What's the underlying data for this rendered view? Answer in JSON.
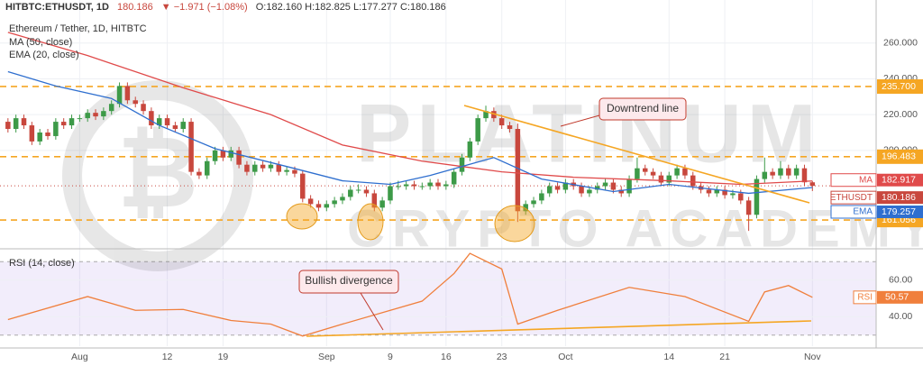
{
  "chart_data": {
    "type": "candlestick",
    "header": {
      "symbol": "HITBTC:ETHUSDT, 1D",
      "last": "180.186",
      "change": "▼ −1.971 (−1.08%)",
      "ohlc": "O:182.160 H:182.825 L:177.277 C:180.186"
    },
    "title": "Ethereum / Tether, 1D, HITBTC",
    "watermark": [
      "PLATINUM",
      "CRYPTO ACADEMY"
    ],
    "xlim": [
      -10,
      100
    ],
    "xticks": [
      {
        "value": 0,
        "label": "Aug"
      },
      {
        "value": 11,
        "label": "12"
      },
      {
        "value": 18,
        "label": "19"
      },
      {
        "value": 31,
        "label": "Sep"
      },
      {
        "value": 39,
        "label": "9"
      },
      {
        "value": 46,
        "label": "16"
      },
      {
        "value": 53,
        "label": "23"
      },
      {
        "value": 61,
        "label": "Oct"
      },
      {
        "value": 74,
        "label": "14"
      },
      {
        "value": 81,
        "label": "21"
      },
      {
        "value": 92,
        "label": "Nov"
      }
    ],
    "ylim": [
      147,
      275
    ],
    "yticks": [
      {
        "value": 200,
        "label": "200.000"
      },
      {
        "value": 220,
        "label": "220.000"
      },
      {
        "value": 240,
        "label": "240.000"
      },
      {
        "value": 260,
        "label": "260.000"
      }
    ],
    "grid": true,
    "candles": {
      "up_color": "#3d9a48",
      "down_color": "#c8473d",
      "x": [
        -9,
        -8,
        -7,
        -6,
        -5,
        -4,
        -3,
        -2,
        -1,
        0,
        1,
        2,
        3,
        4,
        5,
        6,
        7,
        8,
        9,
        10,
        11,
        12,
        13,
        14,
        15,
        16,
        17,
        18,
        19,
        20,
        21,
        22,
        23,
        24,
        25,
        26,
        27,
        28,
        29,
        30,
        31,
        32,
        33,
        34,
        35,
        36,
        37,
        38,
        39,
        40,
        41,
        42,
        43,
        44,
        45,
        46,
        47,
        48,
        49,
        50,
        51,
        52,
        53,
        54,
        55,
        56,
        57,
        58,
        59,
        60,
        61,
        62,
        63,
        64,
        65,
        66,
        67,
        68,
        69,
        70,
        71,
        72,
        73,
        74,
        75,
        76,
        77,
        78,
        79,
        80,
        81,
        82,
        83,
        84,
        85,
        86,
        87,
        88,
        89,
        90,
        91,
        92
      ],
      "ohlc": [
        [
          216,
          218,
          210,
          212
        ],
        [
          212,
          220,
          210,
          218
        ],
        [
          218,
          220,
          212,
          214
        ],
        [
          214,
          216,
          203,
          205
        ],
        [
          205,
          212,
          203,
          210
        ],
        [
          210,
          212,
          206,
          208
        ],
        [
          208,
          218,
          206,
          216
        ],
        [
          216,
          218,
          212,
          214
        ],
        [
          214,
          220,
          212,
          218
        ],
        [
          218,
          220,
          216,
          218
        ],
        [
          218,
          223,
          216,
          221
        ],
        [
          221,
          223,
          217,
          219
        ],
        [
          219,
          224,
          217,
          222
        ],
        [
          222,
          228,
          220,
          226
        ],
        [
          226,
          238,
          224,
          236
        ],
        [
          236,
          238,
          226,
          228
        ],
        [
          228,
          230,
          224,
          226
        ],
        [
          226,
          228,
          220,
          222
        ],
        [
          222,
          224,
          212,
          214
        ],
        [
          214,
          220,
          212,
          218
        ],
        [
          218,
          220,
          212,
          214
        ],
        [
          214,
          216,
          210,
          212
        ],
        [
          212,
          218,
          210,
          216
        ],
        [
          216,
          218,
          186,
          188
        ],
        [
          188,
          190,
          184,
          186
        ],
        [
          186,
          196,
          184,
          194
        ],
        [
          194,
          202,
          192,
          200
        ],
        [
          200,
          202,
          194,
          196
        ],
        [
          196,
          202,
          194,
          200
        ],
        [
          200,
          202,
          190,
          192
        ],
        [
          192,
          194,
          186,
          188
        ],
        [
          188,
          194,
          186,
          192
        ],
        [
          192,
          194,
          188,
          190
        ],
        [
          190,
          194,
          188,
          192
        ],
        [
          192,
          194,
          186,
          188
        ],
        [
          188,
          191,
          186,
          189
        ],
        [
          189,
          191,
          185,
          187
        ],
        [
          187,
          189,
          171,
          173
        ],
        [
          173,
          175,
          168,
          170
        ],
        [
          170,
          172,
          166,
          168
        ],
        [
          168,
          172,
          166,
          170
        ],
        [
          170,
          174,
          168,
          172
        ],
        [
          172,
          176,
          170,
          174
        ],
        [
          174,
          180,
          172,
          178
        ],
        [
          178,
          181,
          176,
          178
        ],
        [
          178,
          180,
          174,
          176
        ],
        [
          176,
          178,
          166,
          168
        ],
        [
          168,
          174,
          166,
          172
        ],
        [
          172,
          182,
          170,
          180
        ],
        [
          180,
          183,
          178,
          180
        ],
        [
          180,
          183,
          178,
          181
        ],
        [
          181,
          183,
          178,
          180
        ],
        [
          180,
          182,
          178,
          180
        ],
        [
          180,
          184,
          178,
          182
        ],
        [
          182,
          184,
          178,
          180
        ],
        [
          180,
          183,
          178,
          181
        ],
        [
          181,
          190,
          179,
          188
        ],
        [
          188,
          198,
          186,
          196
        ],
        [
          196,
          207,
          194,
          205
        ],
        [
          205,
          220,
          203,
          218
        ],
        [
          218,
          225,
          216,
          222
        ],
        [
          222,
          224,
          216,
          218
        ],
        [
          218,
          220,
          212,
          214
        ],
        [
          214,
          216,
          210,
          212
        ],
        [
          212,
          215,
          160,
          166
        ],
        [
          166,
          172,
          164,
          170
        ],
        [
          170,
          174,
          168,
          172
        ],
        [
          172,
          178,
          170,
          176
        ],
        [
          176,
          182,
          174,
          180
        ],
        [
          180,
          182,
          176,
          178
        ],
        [
          178,
          184,
          176,
          182
        ],
        [
          182,
          184,
          178,
          180
        ],
        [
          180,
          182,
          174,
          176
        ],
        [
          176,
          180,
          174,
          178
        ],
        [
          178,
          182,
          176,
          180
        ],
        [
          180,
          184,
          178,
          182
        ],
        [
          182,
          184,
          176,
          178
        ],
        [
          178,
          180,
          174,
          176
        ],
        [
          176,
          186,
          174,
          184
        ],
        [
          184,
          196,
          182,
          190
        ],
        [
          190,
          192,
          186,
          188
        ],
        [
          188,
          190,
          184,
          186
        ],
        [
          186,
          188,
          180,
          182
        ],
        [
          182,
          188,
          180,
          186
        ],
        [
          186,
          192,
          184,
          190
        ],
        [
          190,
          192,
          184,
          186
        ],
        [
          186,
          188,
          178,
          180
        ],
        [
          180,
          182,
          176,
          178
        ],
        [
          178,
          180,
          174,
          176
        ],
        [
          176,
          180,
          174,
          178
        ],
        [
          178,
          180,
          173,
          175
        ],
        [
          175,
          178,
          173,
          176
        ],
        [
          176,
          178,
          170,
          172
        ],
        [
          172,
          174,
          155,
          164
        ],
        [
          164,
          186,
          162,
          184
        ],
        [
          184,
          196,
          182,
          188
        ],
        [
          188,
          190,
          184,
          186
        ],
        [
          186,
          194,
          184,
          190
        ],
        [
          190,
          192,
          184,
          186
        ],
        [
          186,
          192,
          184,
          190
        ],
        [
          190,
          192,
          180,
          182.16
        ],
        [
          182.16,
          182.825,
          177.277,
          180.186
        ]
      ]
    },
    "series": [
      {
        "name": "MA",
        "label": "MA (50, close)",
        "color": "#e04a4a",
        "x": [
          -9,
          1,
          13,
          24,
          33,
          43,
          53,
          62,
          74,
          83,
          92
        ],
        "values": [
          266,
          253,
          235,
          220,
          203,
          194,
          188,
          185,
          183,
          181,
          182.917
        ]
      },
      {
        "name": "EMA",
        "label": "EMA (20, close)",
        "color": "#2f6fcf",
        "x": [
          -9,
          -3,
          4,
          10,
          17,
          26,
          33,
          39,
          44,
          52,
          58,
          67,
          74,
          84,
          92
        ],
        "values": [
          244,
          236,
          229,
          214,
          201,
          191,
          183,
          181,
          186,
          196,
          184,
          177,
          181,
          176,
          179.257
        ]
      }
    ],
    "levels": {
      "color": "#f5a623",
      "items": [
        {
          "value": 235.7,
          "label": "235.700"
        },
        {
          "value": 196.483,
          "label": "196.483"
        },
        {
          "value": 161.056,
          "label": "161.056"
        }
      ]
    },
    "price_labels": [
      {
        "name": "MA",
        "value": 182.917,
        "label": "182.917",
        "color": "#e04a4a"
      },
      {
        "name": "ETHUSDT",
        "value": 180.186,
        "label": "180.186",
        "color": "#c8473d"
      },
      {
        "name": "EMA",
        "value": 179.257,
        "label": "179.257",
        "color": "#2f6fcf"
      }
    ],
    "annotations": [
      "Downtrend line",
      "Bullish divergence"
    ],
    "rsi": {
      "title": "RSI (14, close)",
      "name": "RSI",
      "color": "#f07f3c",
      "ylim": [
        24,
        76
      ],
      "yticks": [
        {
          "value": 40,
          "label": "40.00"
        },
        {
          "value": 60,
          "label": "60.00"
        }
      ],
      "band": [
        30,
        70
      ],
      "x": [
        -9,
        1,
        7,
        13,
        19,
        24,
        28,
        33,
        39,
        43,
        47,
        49,
        53,
        55,
        60,
        69,
        76,
        84,
        86,
        89,
        92
      ],
      "values": [
        38.5,
        51,
        43.5,
        44,
        38,
        36,
        29.5,
        36,
        43.5,
        48.5,
        63.5,
        74.5,
        66,
        36,
        43.5,
        56,
        51,
        37.5,
        53.5,
        57,
        50.57
      ],
      "last": {
        "value": 50.57,
        "label": "50.57"
      }
    }
  }
}
